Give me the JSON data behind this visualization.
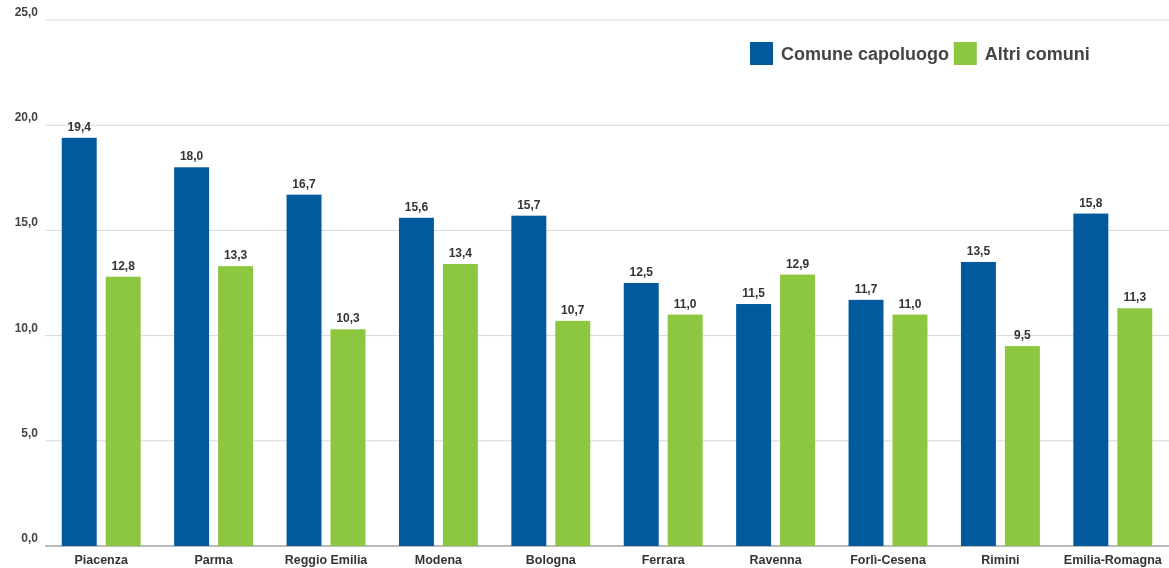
{
  "chart_data": {
    "type": "bar",
    "categories": [
      "Piacenza",
      "Parma",
      "Reggio Emilia",
      "Modena",
      "Bologna",
      "Ferrara",
      "Ravenna",
      "Forlì-Cesena",
      "Rimini",
      "Emilia-Romagna"
    ],
    "series": [
      {
        "name": "Comune capoluogo",
        "color": "#005a9c",
        "values": [
          19.4,
          18.0,
          16.7,
          15.6,
          15.7,
          12.5,
          11.5,
          11.7,
          13.5,
          15.8
        ],
        "value_labels": [
          "19,4",
          "18,0",
          "16,7",
          "15,6",
          "15,7",
          "12,5",
          "11,5",
          "11,7",
          "13,5",
          "15,8"
        ]
      },
      {
        "name": "Altri comuni",
        "color": "#8dc63f",
        "values": [
          12.8,
          13.3,
          10.3,
          13.4,
          10.7,
          11.0,
          12.9,
          11.0,
          9.5,
          11.3
        ],
        "value_labels": [
          "12,8",
          "13,3",
          "10,3",
          "13,4",
          "10,7",
          "11,0",
          "12,9",
          "11,0",
          "9,5",
          "11,3"
        ]
      }
    ],
    "ylim": [
      0,
      25
    ],
    "yticks": [
      {
        "value": 0,
        "label": "0,0"
      },
      {
        "value": 5,
        "label": "5,0"
      },
      {
        "value": 10,
        "label": "10,0"
      },
      {
        "value": 15,
        "label": "15,0"
      },
      {
        "value": 20,
        "label": "20,0"
      },
      {
        "value": 25,
        "label": "25,0"
      }
    ],
    "grid": "y",
    "legend": "top right"
  }
}
